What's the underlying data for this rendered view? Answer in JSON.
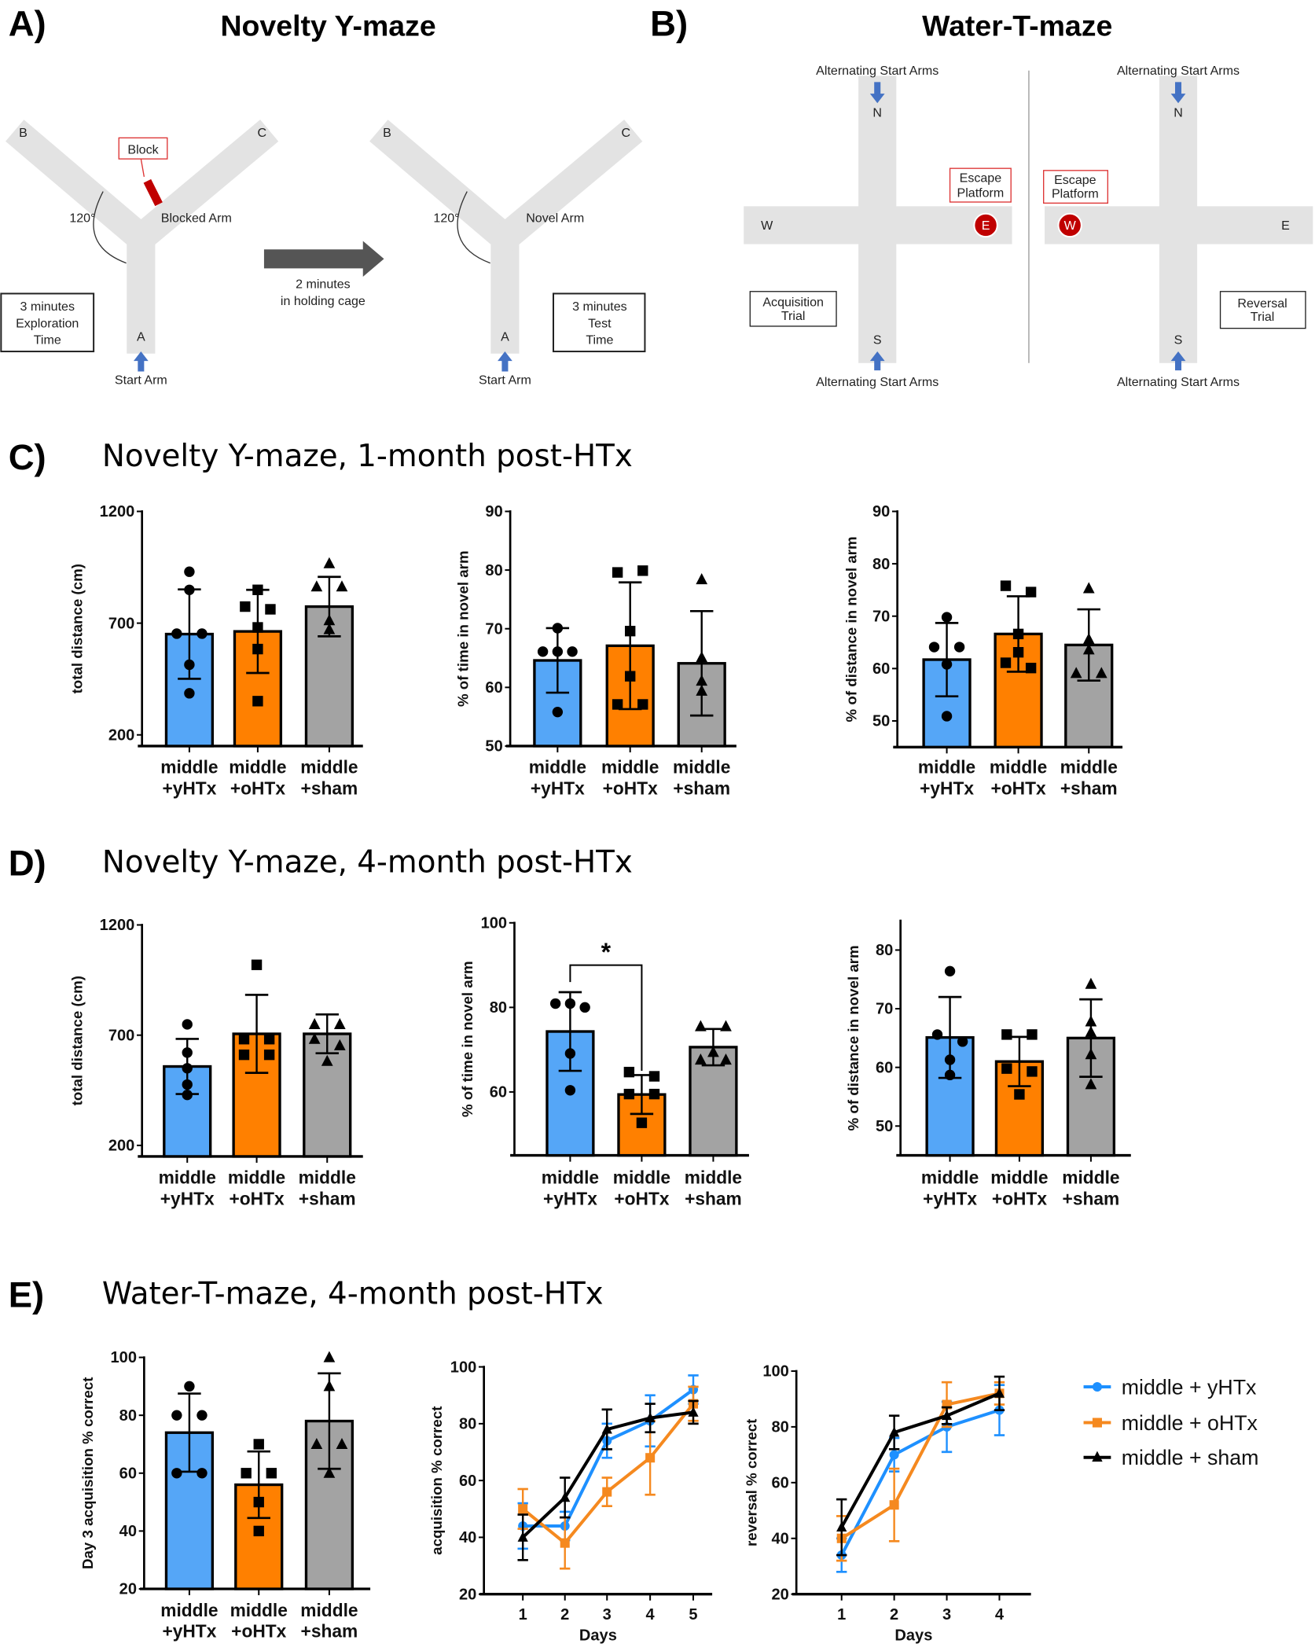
{
  "panels": {
    "A": {
      "label": "A)",
      "title": "Novelty Y-maze",
      "arm_a": "A",
      "arm_b": "B",
      "arm_c": "C",
      "block": "Block",
      "blocked_arm": "Blocked Arm",
      "novel_arm": "Novel Arm",
      "angle": "120°",
      "start_arm": "Start Arm",
      "exploration": [
        "3 minutes",
        "Exploration",
        "Time"
      ],
      "transfer": [
        "2 minutes",
        "in holding cage"
      ],
      "test": [
        "3 minutes",
        "Test",
        "Time"
      ]
    },
    "B": {
      "label": "B)",
      "title": "Water-T-maze",
      "alternating": "Alternating Start Arms",
      "n": "N",
      "s": "S",
      "w": "W",
      "e": "E",
      "escape": [
        "Escape",
        "Platform"
      ],
      "acquisition": [
        "Acquisition",
        "Trial"
      ],
      "reversal": [
        "Reversal",
        "Trial"
      ]
    },
    "C": {
      "label": "C)",
      "title": "Novelty Y-maze, 1-month post-HTx"
    },
    "D": {
      "label": "D)",
      "title": "Novelty Y-maze, 4-month post-HTx"
    },
    "E": {
      "label": "E)",
      "title": "Water-T-maze, 4-month post-HTx"
    }
  },
  "colors": {
    "yHTx": "#55a6f7",
    "oHTx": "#ff8000",
    "sham": "#a3a3a3",
    "yHTx_line": "#1e90ff",
    "oHTx_line": "#f5891f",
    "sham_line": "#000000",
    "block": "#c00000",
    "arrow": "#4472c4"
  },
  "legend": [
    "middle + yHTx",
    "middle + oHTx",
    "middle + sham"
  ],
  "chart_data": [
    {
      "id": "C1",
      "type": "bar",
      "ylabel": "total distance (cm)",
      "ylim": [
        150,
        1200
      ],
      "ticks": [
        200,
        700,
        1200
      ],
      "categories": [
        [
          "middle",
          "+yHTx"
        ],
        [
          "middle",
          "+oHTx"
        ],
        [
          "middle",
          "+sham"
        ]
      ],
      "groups": [
        {
          "mean": 651,
          "sd": 200,
          "points": [
            930,
            849,
            653,
            653,
            514,
            386
          ]
        },
        {
          "mean": 663,
          "sd": 186,
          "points": [
            849,
            774,
            762,
            681,
            584,
            351
          ]
        },
        {
          "mean": 774,
          "sd": 133,
          "points": [
            967,
            863,
            863,
            712,
            672
          ]
        }
      ]
    },
    {
      "id": "C2",
      "type": "bar",
      "ylabel": "% of time in novel arm",
      "ylim": [
        50,
        90
      ],
      "ticks": [
        50,
        60,
        70,
        80,
        90
      ],
      "categories": [
        [
          "middle",
          "+yHTx"
        ],
        [
          "middle",
          "+oHTx"
        ],
        [
          "middle",
          "+sham"
        ]
      ],
      "groups": [
        {
          "mean": 64.6,
          "sd": 5.5,
          "points": [
            70.1,
            66.1,
            66.1,
            66.1,
            55.8
          ]
        },
        {
          "mean": 67.1,
          "sd": 10.8,
          "points": [
            79.6,
            79.9,
            69.6,
            61.9,
            57.1,
            57.1
          ]
        },
        {
          "mean": 64.1,
          "sd": 8.9,
          "points": [
            78.4,
            65.1,
            61.1,
            59.4
          ]
        }
      ]
    },
    {
      "id": "C3",
      "type": "bar",
      "ylabel": "% of distance in novel arm",
      "ylim": [
        45,
        90
      ],
      "ticks": [
        50,
        60,
        70,
        80,
        90
      ],
      "categories": [
        [
          "middle",
          "+yHTx"
        ],
        [
          "middle",
          "+oHTx"
        ],
        [
          "middle",
          "+sham"
        ]
      ],
      "groups": [
        {
          "mean": 61.7,
          "sd": 7.0,
          "points": [
            69.8,
            64.1,
            64.1,
            60.8,
            50.9
          ]
        },
        {
          "mean": 66.6,
          "sd": 7.2,
          "points": [
            75.8,
            74.6,
            66.6,
            63.1,
            61.1,
            60.1
          ]
        },
        {
          "mean": 64.5,
          "sd": 6.8,
          "points": [
            75.3,
            65.6,
            63.6,
            59.1,
            59.1
          ]
        }
      ]
    },
    {
      "id": "D1",
      "type": "bar",
      "ylabel": "total distance (cm)",
      "ylim": [
        150,
        1200
      ],
      "ticks": [
        200,
        700,
        1200
      ],
      "categories": [
        [
          "middle",
          "+yHTx"
        ],
        [
          "middle",
          "+oHTx"
        ],
        [
          "middle",
          "+sham"
        ]
      ],
      "groups": [
        {
          "mean": 558,
          "sd": 125,
          "points": [
            749,
            621,
            550,
            476,
            429
          ]
        },
        {
          "mean": 706,
          "sd": 177,
          "points": [
            1019,
            682,
            682,
            611,
            611
          ]
        },
        {
          "mean": 706,
          "sd": 88,
          "points": [
            749,
            749,
            682,
            653,
            582
          ]
        }
      ]
    },
    {
      "id": "D2",
      "type": "bar",
      "ylabel": "% of time in novel arm",
      "ylim": [
        45,
        100
      ],
      "ticks": [
        60,
        80,
        100
      ],
      "categories": [
        [
          "middle",
          "+yHTx"
        ],
        [
          "middle",
          "+oHTx"
        ],
        [
          "middle",
          "+sham"
        ]
      ],
      "groups": [
        {
          "mean": 74.3,
          "sd": 9.3,
          "points": [
            80.9,
            80.9,
            80.0,
            69.1,
            60.4
          ]
        },
        {
          "mean": 59.4,
          "sd": 4.6,
          "points": [
            64.7,
            63.7,
            59.5,
            59.5,
            52.7
          ]
        },
        {
          "mean": 70.6,
          "sd": 4.3,
          "points": [
            75.5,
            75.5,
            69.4,
            67.6,
            67.6
          ]
        }
      ],
      "significance": {
        "pair": [
          0,
          1
        ],
        "label": "*"
      }
    },
    {
      "id": "D3",
      "type": "bar",
      "ylabel": "% of distance in novel arm",
      "ylim": [
        45,
        85
      ],
      "ticks": [
        50,
        60,
        70,
        80
      ],
      "categories": [
        [
          "middle",
          "+yHTx"
        ],
        [
          "middle",
          "+oHTx"
        ],
        [
          "middle",
          "+sham"
        ]
      ],
      "groups": [
        {
          "mean": 65.1,
          "sd": 6.9,
          "points": [
            76.4,
            65.6,
            64.4,
            61.3,
            58.7
          ]
        },
        {
          "mean": 61.0,
          "sd": 4.2,
          "points": [
            65.6,
            65.6,
            59.8,
            59.3,
            55.4
          ]
        },
        {
          "mean": 65.0,
          "sd": 6.6,
          "points": [
            74.2,
            67.8,
            66.0,
            62.2,
            57.1
          ]
        }
      ]
    },
    {
      "id": "E1",
      "type": "bar",
      "ylabel": "Day 3 acquisition % correct",
      "ylim": [
        20,
        100
      ],
      "ticks": [
        20,
        40,
        60,
        80,
        100
      ],
      "categories": [
        [
          "middle",
          "+yHTx"
        ],
        [
          "middle",
          "+oHTx"
        ],
        [
          "middle",
          "+sham"
        ]
      ],
      "groups": [
        {
          "mean": 74,
          "sd": 13.5,
          "points": [
            90,
            80,
            80,
            60,
            60
          ]
        },
        {
          "mean": 56,
          "sd": 11.5,
          "points": [
            70,
            60,
            60,
            50,
            40
          ]
        },
        {
          "mean": 78,
          "sd": 16.5,
          "points": [
            100,
            90,
            70,
            70,
            60
          ]
        }
      ]
    },
    {
      "id": "E2",
      "type": "line",
      "ylabel": "acquisition % correct",
      "xlabel": "Days",
      "ylim": [
        20,
        100
      ],
      "ticks": [
        20,
        40,
        60,
        80,
        100
      ],
      "x": [
        1,
        2,
        3,
        4,
        5
      ],
      "series": [
        {
          "name": "middle + yHTx",
          "values": [
            44,
            44,
            74,
            81,
            92
          ],
          "err": [
            8,
            5,
            6,
            9,
            5
          ]
        },
        {
          "name": "middle + oHTx",
          "values": [
            50,
            38,
            56,
            68,
            87
          ],
          "err": [
            7,
            9,
            5,
            13,
            6
          ]
        },
        {
          "name": "middle + sham",
          "values": [
            40,
            54,
            78,
            82,
            84
          ],
          "err": [
            8,
            7,
            7,
            5,
            4
          ]
        }
      ]
    },
    {
      "id": "E3",
      "type": "line",
      "ylabel": "reversal % correct",
      "xlabel": "Days",
      "ylim": [
        20,
        100
      ],
      "ticks": [
        20,
        40,
        60,
        80,
        100
      ],
      "x": [
        1,
        2,
        3,
        4
      ],
      "series": [
        {
          "name": "middle + yHTx",
          "values": [
            34,
            70,
            80,
            86
          ],
          "err": [
            6,
            6,
            9,
            9
          ]
        },
        {
          "name": "middle + oHTx",
          "values": [
            40,
            52,
            88,
            92
          ],
          "err": [
            8,
            13,
            8,
            4
          ]
        },
        {
          "name": "middle + sham",
          "values": [
            44,
            78,
            84,
            92
          ],
          "err": [
            10,
            6,
            3,
            6
          ]
        }
      ]
    }
  ]
}
